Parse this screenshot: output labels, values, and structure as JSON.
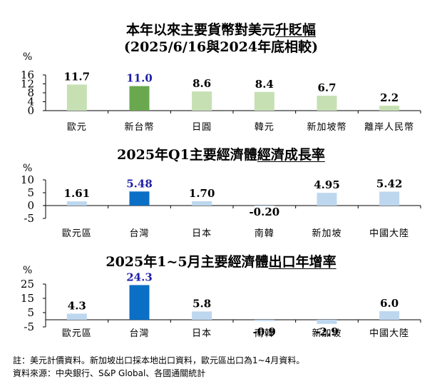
{
  "chart_data": [
    {
      "type": "bar",
      "title_plain": "本年以來主要貨幣對美元",
      "title_underlined": "升貶幅",
      "subtitle": "(2025/6/16與2024年底相較)",
      "yunit": "%",
      "ylim": [
        0,
        16
      ],
      "yticks": [
        0,
        4,
        8,
        12,
        16
      ],
      "categories": [
        "歐元",
        "新台幣",
        "日圓",
        "韓元",
        "新加坡幣",
        "離岸人民幣"
      ],
      "values": [
        11.7,
        11.0,
        8.6,
        8.4,
        6.7,
        2.2
      ],
      "labels": [
        "11.7",
        "11.0",
        "8.6",
        "8.4",
        "6.7",
        "2.2"
      ],
      "highlight_index": 1,
      "colors": {
        "base": "#c6e0b4",
        "highlight": "#6aa84f",
        "highlight_label": "#1f1fa8"
      }
    },
    {
      "type": "bar",
      "title_plain": "2025年Q1主要經濟體",
      "title_underlined": "經濟成長率",
      "yunit": "%",
      "ylim": [
        -5,
        10
      ],
      "yticks": [
        -5,
        0,
        5,
        10
      ],
      "categories": [
        "歐元區",
        "台灣",
        "日本",
        "南韓",
        "新加坡",
        "中國大陸"
      ],
      "values": [
        1.61,
        5.48,
        1.7,
        -0.2,
        4.95,
        5.42
      ],
      "labels": [
        "1.61",
        "5.48",
        "1.70",
        "-0.20",
        "4.95",
        "5.42"
      ],
      "highlight_index": 1,
      "colors": {
        "base": "#bdd7ee",
        "highlight": "#0b6fc6",
        "highlight_label": "#1f1fa8"
      }
    },
    {
      "type": "bar",
      "title_plain": "2025年1~5月主要經濟體",
      "title_underlined": "出口年增率",
      "yunit": "%",
      "ylim": [
        -5,
        25
      ],
      "yticks": [
        -5,
        5,
        15,
        25
      ],
      "categories": [
        "歐元區",
        "台灣",
        "日本",
        "南韓",
        "新加坡",
        "中國大陸"
      ],
      "values": [
        4.3,
        24.3,
        5.8,
        -0.9,
        -2.9,
        6.0
      ],
      "labels": [
        "4.3",
        "24.3",
        "5.8",
        "-0.9",
        "-2.9",
        "6.0"
      ],
      "highlight_index": 1,
      "colors": {
        "base": "#bdd7ee",
        "highlight": "#0b6fc6",
        "highlight_label": "#1f1fa8"
      }
    }
  ],
  "notes": {
    "line1": "註：美元計價資料。新加坡出口採本地出口資料，歐元區出口為1~4月資料。",
    "line2": "資料來源：中央銀行、S&P Global、各國通關統計"
  }
}
